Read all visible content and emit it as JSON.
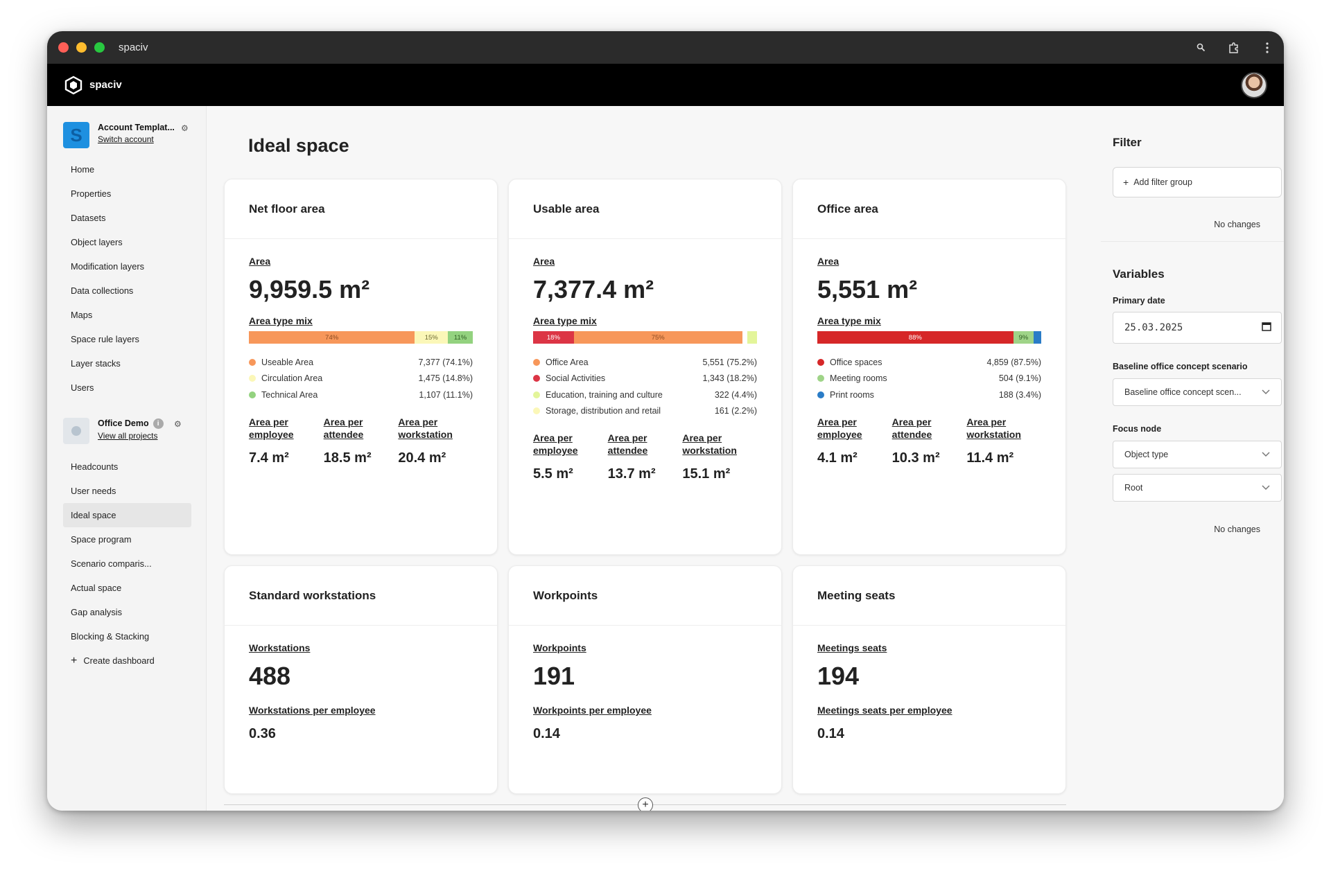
{
  "window": {
    "title": "spaciv"
  },
  "app": {
    "brand": "spaciv"
  },
  "account": {
    "badge": "S",
    "name": "Account Templat...",
    "switch_label": "Switch account"
  },
  "account_nav": [
    "Home",
    "Properties",
    "Datasets",
    "Object layers",
    "Modification layers",
    "Data collections",
    "Maps",
    "Space rule layers",
    "Layer stacks",
    "Users"
  ],
  "project": {
    "name": "Office Demo",
    "info": "i",
    "view_all_label": "View all projects"
  },
  "project_nav": [
    "Headcounts",
    "User needs",
    "Ideal space",
    "Space program",
    "Scenario comparis...",
    "Actual space",
    "Gap analysis",
    "Blocking & Stacking"
  ],
  "active_nav": "Ideal space",
  "create_dashboard_label": "Create dashboard",
  "page": {
    "title": "Ideal space"
  },
  "cards": [
    {
      "title": "Net floor area",
      "metric_label": "Area",
      "metric_value": "9,959.5 m²",
      "mix_label": "Area type mix",
      "bar": [
        {
          "pct": 74.1,
          "label": "74%",
          "color": "#f7975a",
          "text_color": "#8a4a22"
        },
        {
          "pct": 14.8,
          "label": "15%",
          "color": "#fbf7b8",
          "text_color": "#6d6a33"
        },
        {
          "pct": 11.1,
          "label": "11%",
          "color": "#93d27f",
          "text_color": "#2e5d22"
        }
      ],
      "legend": [
        {
          "name": "Useable Area",
          "value": "7,377 (74.1%)",
          "color": "#f7975a"
        },
        {
          "name": "Circulation Area",
          "value": "1,475 (14.8%)",
          "color": "#fbf7b8"
        },
        {
          "name": "Technical Area",
          "value": "1,107 (11.1%)",
          "color": "#93d27f"
        }
      ],
      "ratios": [
        {
          "label": "Area per employee",
          "value": "7.4 m²"
        },
        {
          "label": "Area per attendee",
          "value": "18.5 m²"
        },
        {
          "label": "Area per workstation",
          "value": "20.4 m²"
        }
      ]
    },
    {
      "title": "Usable area",
      "metric_label": "Area",
      "metric_value": "7,377.4 m²",
      "mix_label": "Area type mix",
      "bar": [
        {
          "pct": 18.2,
          "label": "18%",
          "color": "#dc3545",
          "text_color": "#ffffff"
        },
        {
          "pct": 75.2,
          "label": "75%",
          "color": "#f7975a",
          "text_color": "#8a4a22"
        },
        {
          "pct": 2.2,
          "label": "",
          "color": "#ffffff",
          "text_color": "#333333"
        },
        {
          "pct": 4.4,
          "label": "",
          "color": "#e3f59a",
          "text_color": "#333333"
        }
      ],
      "legend": [
        {
          "name": "Office Area",
          "value": "5,551 (75.2%)",
          "color": "#f7975a"
        },
        {
          "name": "Social Activities",
          "value": "1,343 (18.2%)",
          "color": "#dc3545"
        },
        {
          "name": "Education, training and culture",
          "value": "322 (4.4%)",
          "color": "#e3f59a"
        },
        {
          "name": "Storage, distribution and retail",
          "value": "161 (2.2%)",
          "color": "#fbf7b8"
        }
      ],
      "ratios": [
        {
          "label": "Area per employee",
          "value": "5.5 m²"
        },
        {
          "label": "Area per attendee",
          "value": "13.7 m²"
        },
        {
          "label": "Area per workstation",
          "value": "15.1 m²"
        }
      ]
    },
    {
      "title": "Office area",
      "metric_label": "Area",
      "metric_value": "5,551 m²",
      "mix_label": "Area type mix",
      "bar": [
        {
          "pct": 87.5,
          "label": "88%",
          "color": "#d62728",
          "text_color": "#ffffff"
        },
        {
          "pct": 9.1,
          "label": "9%",
          "color": "#9fd488",
          "text_color": "#2e5d22"
        },
        {
          "pct": 3.4,
          "label": "",
          "color": "#2a7cc7",
          "text_color": "#ffffff"
        }
      ],
      "legend": [
        {
          "name": "Office spaces",
          "value": "4,859 (87.5%)",
          "color": "#d62728"
        },
        {
          "name": "Meeting rooms",
          "value": "504 (9.1%)",
          "color": "#9fd488"
        },
        {
          "name": "Print rooms",
          "value": "188 (3.4%)",
          "color": "#2a7cc7"
        }
      ],
      "ratios": [
        {
          "label": "Area per employee",
          "value": "4.1 m²"
        },
        {
          "label": "Area per attendee",
          "value": "10.3 m²"
        },
        {
          "label": "Area per workstation",
          "value": "11.4 m²"
        }
      ]
    }
  ],
  "count_cards": [
    {
      "title": "Standard workstations",
      "metric_label": "Workstations",
      "metric_value": "488",
      "sub_label": "Workstations per employee",
      "sub_value": "0.36"
    },
    {
      "title": "Workpoints",
      "metric_label": "Workpoints",
      "metric_value": "191",
      "sub_label": "Workpoints per employee",
      "sub_value": "0.14"
    },
    {
      "title": "Meeting seats",
      "metric_label": "Meetings seats",
      "metric_value": "194",
      "sub_label": "Meetings seats per employee",
      "sub_value": "0.14"
    }
  ],
  "filter": {
    "title": "Filter",
    "add_label": "Add filter group",
    "status": "No changes"
  },
  "variables": {
    "title": "Variables",
    "primary_date_label": "Primary date",
    "primary_date_value": "25.03.2025",
    "baseline_label": "Baseline office concept scenario",
    "baseline_value": "Baseline office concept scen...",
    "focus_label": "Focus node",
    "focus_type": "Object type",
    "focus_node": "Root",
    "status": "No changes"
  },
  "icons": {
    "search": "search-icon",
    "extensions": "puzzle-icon",
    "menu": "kebab-icon",
    "logo": "cube-icon",
    "gear": "gear-icon",
    "date": "calendar-icon",
    "chevron": "chevron-down-icon",
    "add": "plus-icon"
  }
}
